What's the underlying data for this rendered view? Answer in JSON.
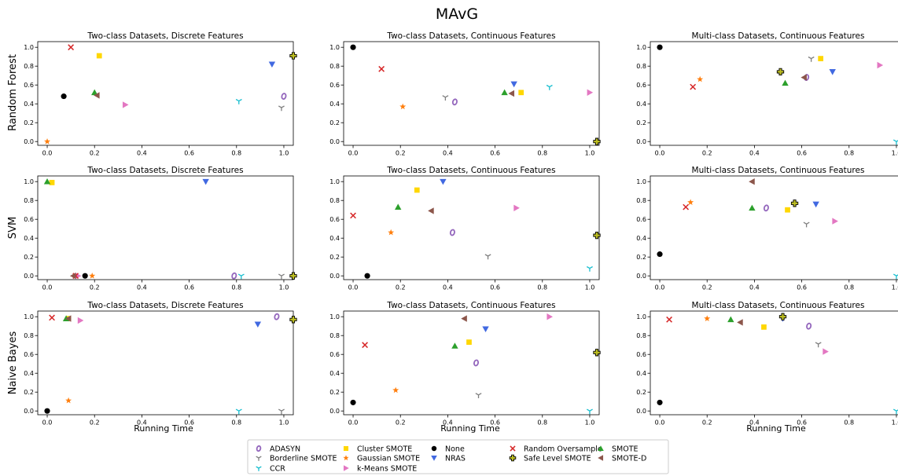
{
  "figure_title": "MAvG",
  "row_labels": [
    "Random Forest",
    "SVM",
    "Naive Bayes"
  ],
  "x_axis_label": "Running Time",
  "marker_styles": {
    "ADASYN": {
      "shape": "o-open",
      "color": "#9467bd"
    },
    "Borderline SMOTE": {
      "shape": "tri-down-line",
      "color": "#7f7f7f"
    },
    "CCR": {
      "shape": "tri-down-line",
      "color": "#17becf"
    },
    "Cluster SMOTE": {
      "shape": "square",
      "color": "#ffd700"
    },
    "Gaussian SMOTE": {
      "shape": "star",
      "color": "#ff7f0e"
    },
    "k-Means SMOTE": {
      "shape": "triangle-right",
      "color": "#e377c2"
    },
    "None": {
      "shape": "circle",
      "color": "#000000"
    },
    "NRAS": {
      "shape": "triangle-down",
      "color": "#4169e1"
    },
    "Random Oversample": {
      "shape": "x",
      "color": "#d62728"
    },
    "Safe Level SMOTE": {
      "shape": "plus",
      "color": "#bcbd22"
    },
    "SMOTE": {
      "shape": "triangle-up",
      "color": "#2ca02c"
    },
    "SMOTE-D": {
      "shape": "triangle-left",
      "color": "#8c564b"
    }
  },
  "legend": {
    "placement": "bottom-center",
    "columns": [
      [
        "ADASYN",
        "Borderline SMOTE",
        "CCR"
      ],
      [
        "Cluster SMOTE",
        "Gaussian SMOTE",
        "k-Means SMOTE"
      ],
      [
        "None",
        "NRAS"
      ],
      [
        "Random Oversample",
        "Safe Level SMOTE"
      ],
      [
        "SMOTE",
        "SMOTE-D"
      ]
    ]
  },
  "chart_data": [
    {
      "type": "scatter",
      "row": 0,
      "col": 0,
      "title": "Two-class Datasets, Discrete Features",
      "xlim": [
        -0.04,
        1.04
      ],
      "ylim": [
        -0.04,
        1.06
      ],
      "xticks": [
        "0.0",
        "0.2",
        "0.4",
        "0.6",
        "0.8",
        "1.0"
      ],
      "yticks": [
        "0.0",
        "0.2",
        "0.4",
        "0.6",
        "0.8",
        "1.0"
      ],
      "points": [
        {
          "series": "ADASYN",
          "x": 1.0,
          "y": 0.48
        },
        {
          "series": "Borderline SMOTE",
          "x": 0.99,
          "y": 0.36
        },
        {
          "series": "CCR",
          "x": 0.81,
          "y": 0.43
        },
        {
          "series": "Cluster SMOTE",
          "x": 0.22,
          "y": 0.91
        },
        {
          "series": "Gaussian SMOTE",
          "x": 0.0,
          "y": 0.0
        },
        {
          "series": "k-Means SMOTE",
          "x": 0.33,
          "y": 0.39
        },
        {
          "series": "None",
          "x": 0.07,
          "y": 0.48
        },
        {
          "series": "NRAS",
          "x": 0.95,
          "y": 0.82
        },
        {
          "series": "Random Oversample",
          "x": 0.1,
          "y": 1.0
        },
        {
          "series": "Safe Level SMOTE",
          "x": 1.04,
          "y": 0.91
        },
        {
          "series": "SMOTE",
          "x": 0.2,
          "y": 0.52
        },
        {
          "series": "SMOTE-D",
          "x": 0.21,
          "y": 0.49
        }
      ]
    },
    {
      "type": "scatter",
      "row": 0,
      "col": 1,
      "title": "Two-class Datasets, Continuous Features",
      "xlim": [
        -0.04,
        1.04
      ],
      "ylim": [
        -0.04,
        1.06
      ],
      "xticks": [
        "0.0",
        "0.2",
        "0.4",
        "0.6",
        "0.8",
        "1.0"
      ],
      "yticks": [
        "0.0",
        "0.2",
        "0.4",
        "0.6",
        "0.8",
        "1.0"
      ],
      "points": [
        {
          "series": "ADASYN",
          "x": 0.43,
          "y": 0.42
        },
        {
          "series": "Borderline SMOTE",
          "x": 0.39,
          "y": 0.47
        },
        {
          "series": "CCR",
          "x": 0.83,
          "y": 0.58
        },
        {
          "series": "Cluster SMOTE",
          "x": 0.71,
          "y": 0.52
        },
        {
          "series": "Gaussian SMOTE",
          "x": 0.21,
          "y": 0.37
        },
        {
          "series": "k-Means SMOTE",
          "x": 1.0,
          "y": 0.52
        },
        {
          "series": "None",
          "x": 0.0,
          "y": 1.0
        },
        {
          "series": "NRAS",
          "x": 0.68,
          "y": 0.61
        },
        {
          "series": "Random Oversample",
          "x": 0.12,
          "y": 0.77
        },
        {
          "series": "Safe Level SMOTE",
          "x": 1.03,
          "y": 0.0
        },
        {
          "series": "SMOTE",
          "x": 0.64,
          "y": 0.52
        },
        {
          "series": "SMOTE-D",
          "x": 0.67,
          "y": 0.51
        }
      ]
    },
    {
      "type": "scatter",
      "row": 0,
      "col": 2,
      "title": "Multi-class Datasets, Continuous Features",
      "xlim": [
        -0.04,
        1.04
      ],
      "ylim": [
        -0.04,
        1.06
      ],
      "xticks": [
        "0.0",
        "0.2",
        "0.4",
        "0.6",
        "0.8",
        "1.0"
      ],
      "yticks": [
        "0.0",
        "0.2",
        "0.4",
        "0.6",
        "0.8",
        "1.0"
      ],
      "points": [
        {
          "series": "ADASYN",
          "x": 0.62,
          "y": 0.68
        },
        {
          "series": "Borderline SMOTE",
          "x": 0.64,
          "y": 0.88
        },
        {
          "series": "CCR",
          "x": 1.0,
          "y": 0.0
        },
        {
          "series": "Cluster SMOTE",
          "x": 0.68,
          "y": 0.88
        },
        {
          "series": "Gaussian SMOTE",
          "x": 0.17,
          "y": 0.66
        },
        {
          "series": "k-Means SMOTE",
          "x": 0.93,
          "y": 0.81
        },
        {
          "series": "None",
          "x": 0.0,
          "y": 1.0
        },
        {
          "series": "NRAS",
          "x": 0.73,
          "y": 0.74
        },
        {
          "series": "Random Oversample",
          "x": 0.14,
          "y": 0.58
        },
        {
          "series": "Safe Level SMOTE",
          "x": 0.51,
          "y": 0.74
        },
        {
          "series": "SMOTE",
          "x": 0.53,
          "y": 0.62
        },
        {
          "series": "SMOTE-D",
          "x": 0.61,
          "y": 0.68
        }
      ]
    },
    {
      "type": "scatter",
      "row": 1,
      "col": 0,
      "title": "Two-class Datasets, Discrete Features",
      "xlim": [
        -0.04,
        1.04
      ],
      "ylim": [
        -0.04,
        1.06
      ],
      "xticks": [
        "0.0",
        "0.2",
        "0.4",
        "0.6",
        "0.8",
        "1.0"
      ],
      "yticks": [
        "0.0",
        "0.2",
        "0.4",
        "0.6",
        "0.8",
        "1.0"
      ],
      "points": [
        {
          "series": "ADASYN",
          "x": 0.79,
          "y": 0.0
        },
        {
          "series": "Borderline SMOTE",
          "x": 0.99,
          "y": 0.0
        },
        {
          "series": "CCR",
          "x": 0.82,
          "y": 0.0
        },
        {
          "series": "Cluster SMOTE",
          "x": 0.02,
          "y": 0.99
        },
        {
          "series": "Gaussian SMOTE",
          "x": 0.19,
          "y": 0.0
        },
        {
          "series": "k-Means SMOTE",
          "x": 0.13,
          "y": 0.0
        },
        {
          "series": "None",
          "x": 0.16,
          "y": 0.0
        },
        {
          "series": "NRAS",
          "x": 0.67,
          "y": 1.0
        },
        {
          "series": "Random Oversample",
          "x": 0.12,
          "y": 0.0
        },
        {
          "series": "Safe Level SMOTE",
          "x": 1.04,
          "y": 0.0
        },
        {
          "series": "SMOTE",
          "x": 0.0,
          "y": 1.0
        },
        {
          "series": "SMOTE-D",
          "x": 0.11,
          "y": 0.0
        }
      ]
    },
    {
      "type": "scatter",
      "row": 1,
      "col": 1,
      "title": "Two-class Datasets, Continuous Features",
      "xlim": [
        -0.04,
        1.04
      ],
      "ylim": [
        -0.04,
        1.06
      ],
      "xticks": [
        "0.0",
        "0.2",
        "0.4",
        "0.6",
        "0.8",
        "1.0"
      ],
      "yticks": [
        "0.0",
        "0.2",
        "0.4",
        "0.6",
        "0.8",
        "1.0"
      ],
      "points": [
        {
          "series": "ADASYN",
          "x": 0.42,
          "y": 0.46
        },
        {
          "series": "Borderline SMOTE",
          "x": 0.57,
          "y": 0.21
        },
        {
          "series": "CCR",
          "x": 1.0,
          "y": 0.08
        },
        {
          "series": "Cluster SMOTE",
          "x": 0.27,
          "y": 0.91
        },
        {
          "series": "Gaussian SMOTE",
          "x": 0.16,
          "y": 0.46
        },
        {
          "series": "k-Means SMOTE",
          "x": 0.69,
          "y": 0.72
        },
        {
          "series": "None",
          "x": 0.06,
          "y": 0.0
        },
        {
          "series": "NRAS",
          "x": 0.38,
          "y": 1.0
        },
        {
          "series": "Random Oversample",
          "x": 0.0,
          "y": 0.64
        },
        {
          "series": "Safe Level SMOTE",
          "x": 1.03,
          "y": 0.43
        },
        {
          "series": "SMOTE",
          "x": 0.19,
          "y": 0.73
        },
        {
          "series": "SMOTE-D",
          "x": 0.33,
          "y": 0.69
        }
      ]
    },
    {
      "type": "scatter",
      "row": 1,
      "col": 2,
      "title": "Multi-class Datasets, Continuous Features",
      "xlim": [
        -0.04,
        1.04
      ],
      "ylim": [
        -0.04,
        1.06
      ],
      "xticks": [
        "0.0",
        "0.2",
        "0.4",
        "0.6",
        "0.8",
        "1.0"
      ],
      "yticks": [
        "0.0",
        "0.2",
        "0.4",
        "0.6",
        "0.8",
        "1.0"
      ],
      "points": [
        {
          "series": "ADASYN",
          "x": 0.45,
          "y": 0.72
        },
        {
          "series": "Borderline SMOTE",
          "x": 0.62,
          "y": 0.55
        },
        {
          "series": "CCR",
          "x": 1.0,
          "y": 0.0
        },
        {
          "series": "Cluster SMOTE",
          "x": 0.54,
          "y": 0.7
        },
        {
          "series": "Gaussian SMOTE",
          "x": 0.13,
          "y": 0.78
        },
        {
          "series": "k-Means SMOTE",
          "x": 0.74,
          "y": 0.58
        },
        {
          "series": "None",
          "x": 0.0,
          "y": 0.23
        },
        {
          "series": "NRAS",
          "x": 0.66,
          "y": 0.76
        },
        {
          "series": "Random Oversample",
          "x": 0.11,
          "y": 0.73
        },
        {
          "series": "Safe Level SMOTE",
          "x": 0.57,
          "y": 0.77
        },
        {
          "series": "SMOTE",
          "x": 0.39,
          "y": 0.72
        },
        {
          "series": "SMOTE-D",
          "x": 0.39,
          "y": 1.0
        }
      ]
    },
    {
      "type": "scatter",
      "row": 2,
      "col": 0,
      "title": "Two-class Datasets, Discrete Features",
      "xlim": [
        -0.04,
        1.04
      ],
      "ylim": [
        -0.04,
        1.06
      ],
      "xticks": [
        "0.0",
        "0.2",
        "0.4",
        "0.6",
        "0.8",
        "1.0"
      ],
      "yticks": [
        "0.0",
        "0.2",
        "0.4",
        "0.6",
        "0.8",
        "1.0"
      ],
      "points": [
        {
          "series": "ADASYN",
          "x": 0.97,
          "y": 1.0
        },
        {
          "series": "Borderline SMOTE",
          "x": 0.99,
          "y": 0.0
        },
        {
          "series": "CCR",
          "x": 0.81,
          "y": 0.0
        },
        {
          "series": "Cluster SMOTE",
          "x": 0.09,
          "y": 0.98
        },
        {
          "series": "Gaussian SMOTE",
          "x": 0.09,
          "y": 0.11
        },
        {
          "series": "k-Means SMOTE",
          "x": 0.14,
          "y": 0.96
        },
        {
          "series": "None",
          "x": 0.0,
          "y": 0.0
        },
        {
          "series": "NRAS",
          "x": 0.89,
          "y": 0.92
        },
        {
          "series": "Random Oversample",
          "x": 0.02,
          "y": 0.99
        },
        {
          "series": "Safe Level SMOTE",
          "x": 1.04,
          "y": 0.97
        },
        {
          "series": "SMOTE",
          "x": 0.08,
          "y": 0.98
        },
        {
          "series": "SMOTE-D",
          "x": 0.09,
          "y": 0.98
        }
      ]
    },
    {
      "type": "scatter",
      "row": 2,
      "col": 1,
      "title": "Two-class Datasets, Continuous Features",
      "xlim": [
        -0.04,
        1.04
      ],
      "ylim": [
        -0.04,
        1.06
      ],
      "xticks": [
        "0.0",
        "0.2",
        "0.4",
        "0.6",
        "0.8",
        "1.0"
      ],
      "yticks": [
        "0.0",
        "0.2",
        "0.4",
        "0.6",
        "0.8",
        "1.0"
      ],
      "xlabel": "Running Time",
      "points": [
        {
          "series": "ADASYN",
          "x": 0.52,
          "y": 0.51
        },
        {
          "series": "Borderline SMOTE",
          "x": 0.53,
          "y": 0.17
        },
        {
          "series": "CCR",
          "x": 1.0,
          "y": 0.0
        },
        {
          "series": "Cluster SMOTE",
          "x": 0.49,
          "y": 0.73
        },
        {
          "series": "Gaussian SMOTE",
          "x": 0.18,
          "y": 0.22
        },
        {
          "series": "k-Means SMOTE",
          "x": 0.83,
          "y": 1.0
        },
        {
          "series": "None",
          "x": 0.0,
          "y": 0.09
        },
        {
          "series": "NRAS",
          "x": 0.56,
          "y": 0.87
        },
        {
          "series": "Random Oversample",
          "x": 0.05,
          "y": 0.7
        },
        {
          "series": "Safe Level SMOTE",
          "x": 1.03,
          "y": 0.62
        },
        {
          "series": "SMOTE",
          "x": 0.43,
          "y": 0.69
        },
        {
          "series": "SMOTE-D",
          "x": 0.47,
          "y": 0.98
        }
      ]
    },
    {
      "type": "scatter",
      "row": 2,
      "col": 2,
      "title": "Multi-class Datasets, Continuous Features",
      "xlim": [
        -0.04,
        1.04
      ],
      "ylim": [
        -0.04,
        1.06
      ],
      "xticks": [
        "0.0",
        "0.2",
        "0.4",
        "0.6",
        "0.8",
        "1.0"
      ],
      "yticks": [
        "0.0",
        "0.2",
        "0.4",
        "0.6",
        "0.8",
        "1.0"
      ],
      "points": [
        {
          "series": "ADASYN",
          "x": 0.63,
          "y": 0.9
        },
        {
          "series": "Borderline SMOTE",
          "x": 0.67,
          "y": 0.71
        },
        {
          "series": "CCR",
          "x": 1.0,
          "y": 0.0
        },
        {
          "series": "Cluster SMOTE",
          "x": 0.44,
          "y": 0.89
        },
        {
          "series": "Gaussian SMOTE",
          "x": 0.2,
          "y": 0.98
        },
        {
          "series": "k-Means SMOTE",
          "x": 0.7,
          "y": 0.63
        },
        {
          "series": "None",
          "x": 0.0,
          "y": 0.09
        },
        {
          "series": "NRAS",
          "x": 0.52,
          "y": 0.98
        },
        {
          "series": "Random Oversample",
          "x": 0.04,
          "y": 0.97
        },
        {
          "series": "Safe Level SMOTE",
          "x": 0.52,
          "y": 1.0
        },
        {
          "series": "SMOTE",
          "x": 0.3,
          "y": 0.97
        },
        {
          "series": "SMOTE-D",
          "x": 0.34,
          "y": 0.94
        }
      ]
    }
  ]
}
